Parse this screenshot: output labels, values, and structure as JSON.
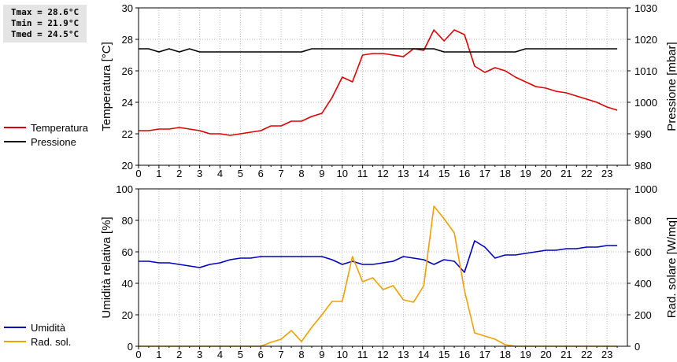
{
  "stats": {
    "tmax": "Tmax = 28.6°C",
    "tmin": "Tmin = 21.9°C",
    "tmed": "Tmed = 24.5°C"
  },
  "colors": {
    "temperature": "#dd0000",
    "pressure": "#000000",
    "humidity": "#0000c0",
    "radiation": "#f0a000",
    "grid": "#b8b8b8"
  },
  "chart_data": [
    {
      "type": "line",
      "x_ticks": [
        "0",
        "1",
        "2",
        "3",
        "4",
        "5",
        "6",
        "7",
        "8",
        "9",
        "10",
        "11",
        "12",
        "13",
        "14",
        "15",
        "16",
        "17",
        "18",
        "19",
        "20",
        "21",
        "22",
        "23"
      ],
      "xlim": [
        0,
        24
      ],
      "ylabel_left": "Temperatura [°C]",
      "ylim_left": [
        20,
        30
      ],
      "yticks_left": [
        "20",
        "22",
        "24",
        "26",
        "28",
        "30"
      ],
      "ylabel_right": "Pressione [mbar]",
      "ylim_right": [
        980,
        1030
      ],
      "yticks_right": [
        "980",
        "990",
        "1000",
        "1010",
        "1020",
        "1030"
      ],
      "grid": true,
      "legend_position": "left",
      "series": [
        {
          "name": "Temperatura",
          "axis": "left",
          "x": [
            0,
            0.5,
            1,
            1.5,
            2,
            2.5,
            3,
            3.5,
            4,
            4.5,
            5,
            5.5,
            6,
            6.5,
            7,
            7.5,
            8,
            8.5,
            9,
            9.5,
            10,
            10.5,
            11,
            11.5,
            12,
            12.5,
            13,
            13.5,
            14,
            14.5,
            15,
            15.5,
            16,
            16.5,
            17,
            17.5,
            18,
            18.5,
            19,
            19.5,
            20,
            20.5,
            21,
            21.5,
            22,
            22.5,
            23,
            23.5
          ],
          "values": [
            22.2,
            22.2,
            22.3,
            22.3,
            22.4,
            22.3,
            22.2,
            22.0,
            22.0,
            21.9,
            22.0,
            22.1,
            22.2,
            22.5,
            22.5,
            22.8,
            22.8,
            23.1,
            23.3,
            24.3,
            25.6,
            25.3,
            27.0,
            27.1,
            27.1,
            27.0,
            26.9,
            27.4,
            27.3,
            28.6,
            27.9,
            28.6,
            28.3,
            26.3,
            25.9,
            26.2,
            26.0,
            25.6,
            25.3,
            25.0,
            24.9,
            24.7,
            24.6,
            24.4,
            24.2,
            24.0,
            23.7,
            23.5
          ]
        },
        {
          "name": "Pressione",
          "axis": "right",
          "x": [
            0,
            0.5,
            1,
            1.5,
            2,
            2.5,
            3,
            3.5,
            4,
            4.5,
            5,
            5.5,
            6,
            6.5,
            7,
            7.5,
            8,
            8.5,
            9,
            9.5,
            10,
            10.5,
            11,
            11.5,
            12,
            12.5,
            13,
            13.5,
            14,
            14.5,
            15,
            15.5,
            16,
            16.5,
            17,
            17.5,
            18,
            18.5,
            19,
            19.5,
            20,
            20.5,
            21,
            21.5,
            22,
            22.5,
            23,
            23.5
          ],
          "values": [
            1017,
            1017,
            1016,
            1017,
            1016,
            1017,
            1016,
            1016,
            1016,
            1016,
            1016,
            1016,
            1016,
            1016,
            1016,
            1016,
            1016,
            1017,
            1017,
            1017,
            1017,
            1017,
            1017,
            1017,
            1017,
            1017,
            1017,
            1017,
            1017,
            1017,
            1016,
            1016,
            1016,
            1016,
            1016,
            1016,
            1016,
            1016,
            1017,
            1017,
            1017,
            1017,
            1017,
            1017,
            1017,
            1017,
            1017,
            1017
          ]
        }
      ]
    },
    {
      "type": "line",
      "x_ticks": [
        "0",
        "1",
        "2",
        "3",
        "4",
        "5",
        "6",
        "7",
        "8",
        "9",
        "10",
        "11",
        "12",
        "13",
        "14",
        "15",
        "16",
        "17",
        "18",
        "19",
        "20",
        "21",
        "22",
        "23"
      ],
      "xlim": [
        0,
        24
      ],
      "ylabel_left": "Umidità relativa [%]",
      "ylim_left": [
        0,
        100
      ],
      "yticks_left": [
        "0",
        "20",
        "40",
        "60",
        "80",
        "100"
      ],
      "ylabel_right": "Rad. solare [W/mq]",
      "ylim_right": [
        0,
        1000
      ],
      "yticks_right": [
        "0",
        "200",
        "400",
        "600",
        "800",
        "1000"
      ],
      "grid": true,
      "legend_position": "left",
      "series": [
        {
          "name": "Umidità",
          "axis": "left",
          "x": [
            0,
            0.5,
            1,
            1.5,
            2,
            2.5,
            3,
            3.5,
            4,
            4.5,
            5,
            5.5,
            6,
            6.5,
            7,
            7.5,
            8,
            8.5,
            9,
            9.5,
            10,
            10.5,
            11,
            11.5,
            12,
            12.5,
            13,
            13.5,
            14,
            14.5,
            15,
            15.5,
            16,
            16.5,
            17,
            17.5,
            18,
            18.5,
            19,
            19.5,
            20,
            20.5,
            21,
            21.5,
            22,
            22.5,
            23,
            23.5
          ],
          "values": [
            54,
            54,
            53,
            53,
            52,
            51,
            50,
            52,
            53,
            55,
            56,
            56,
            57,
            57,
            57,
            57,
            57,
            57,
            57,
            55,
            52,
            54,
            52,
            52,
            53,
            54,
            57,
            56,
            55,
            52,
            55,
            54,
            47,
            67,
            63,
            56,
            58,
            58,
            59,
            60,
            61,
            61,
            62,
            62,
            63,
            63,
            64,
            64
          ]
        },
        {
          "name": "Rad. sol.",
          "axis": "right",
          "x": [
            0,
            0.5,
            1,
            1.5,
            2,
            2.5,
            3,
            3.5,
            4,
            4.5,
            5,
            5.5,
            6,
            6.5,
            7,
            7.5,
            8,
            8.5,
            9,
            9.5,
            10,
            10.5,
            11,
            11.5,
            12,
            12.5,
            13,
            13.5,
            14,
            14.5,
            15,
            15.5,
            16,
            16.5,
            17,
            17.5,
            18,
            18.5,
            19,
            19.5,
            20,
            20.5,
            21,
            21.5,
            22,
            22.5,
            23,
            23.5
          ],
          "values": [
            0,
            0,
            0,
            0,
            0,
            0,
            0,
            0,
            0,
            0,
            0,
            0,
            0,
            25,
            45,
            100,
            30,
            120,
            200,
            285,
            285,
            570,
            410,
            435,
            360,
            385,
            295,
            280,
            385,
            890,
            810,
            720,
            355,
            85,
            65,
            45,
            10,
            0,
            0,
            0,
            0,
            0,
            0,
            0,
            0,
            0,
            0,
            0
          ]
        }
      ]
    }
  ]
}
